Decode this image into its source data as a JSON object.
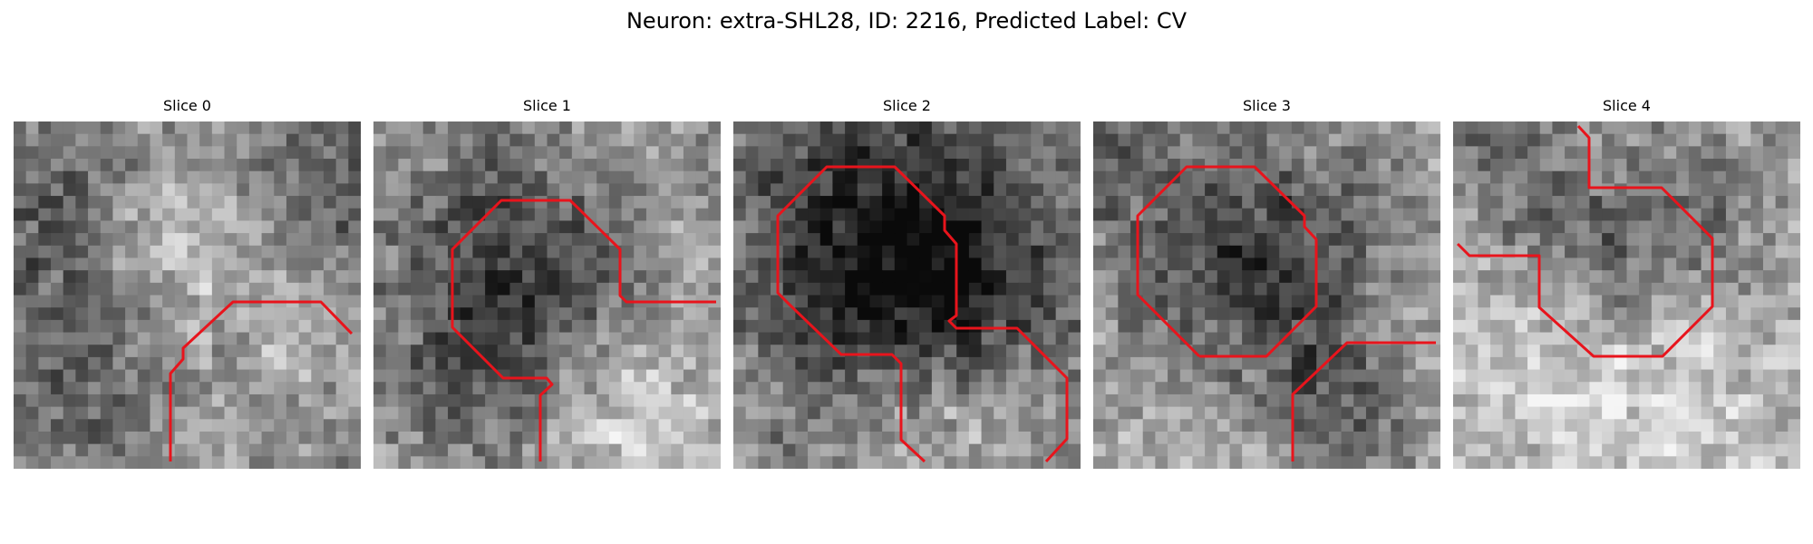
{
  "figure": {
    "title": "Neuron: extra-SHL28, ID: 2216, Predicted Label: CV",
    "contour_color": "#e8141c",
    "panels": [
      {
        "title": "Slice 0"
      },
      {
        "title": "Slice 1"
      },
      {
        "title": "Slice 2"
      },
      {
        "title": "Slice 3"
      },
      {
        "title": "Slice 4"
      }
    ]
  }
}
